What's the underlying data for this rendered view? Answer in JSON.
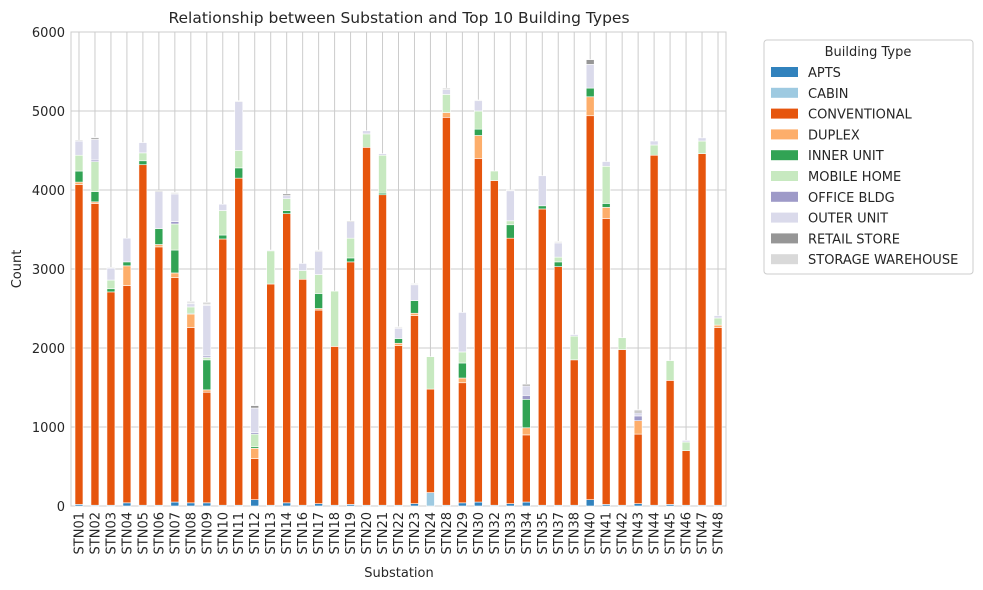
{
  "chart_data": {
    "type": "bar",
    "stacked": true,
    "title": "Relationship between Substation and Top 10 Building Types",
    "xlabel": "Substation",
    "ylabel": "Count",
    "ylim": [
      0,
      6000
    ],
    "yticks": [
      "0",
      "1000",
      "2000",
      "3000",
      "4000",
      "5000",
      "6000"
    ],
    "grid": true,
    "legend_title": "Building Type",
    "legend_position": "outside-right",
    "categories": [
      "STN01",
      "STN02",
      "STN03",
      "STN04",
      "STN05",
      "STN06",
      "STN07",
      "STN08",
      "STN09",
      "STN10",
      "STN11",
      "STN12",
      "STN13",
      "STN14",
      "STN16",
      "STN17",
      "STN18",
      "STN19",
      "STN20",
      "STN21",
      "STN22",
      "STN23",
      "STN24",
      "STN28",
      "STN29",
      "STN30",
      "STN32",
      "STN33",
      "STN34",
      "STN35",
      "STN37",
      "STN38",
      "STN40",
      "STN41",
      "STN42",
      "STN43",
      "STN44",
      "STN45",
      "STN46",
      "STN47",
      "STN48"
    ],
    "series": [
      {
        "name": "APTS",
        "color": "#3182bd",
        "values": [
          20,
          10,
          10,
          40,
          10,
          10,
          50,
          40,
          40,
          10,
          10,
          80,
          10,
          40,
          10,
          30,
          10,
          20,
          10,
          10,
          10,
          30,
          0,
          10,
          40,
          50,
          10,
          30,
          50,
          10,
          10,
          10,
          80,
          20,
          10,
          30,
          10,
          20,
          10,
          10,
          10
        ]
      },
      {
        "name": "CABIN",
        "color": "#9ecae1",
        "values": [
          0,
          0,
          0,
          0,
          0,
          0,
          0,
          0,
          0,
          0,
          0,
          0,
          0,
          0,
          0,
          0,
          0,
          0,
          0,
          0,
          0,
          0,
          170,
          0,
          0,
          0,
          0,
          0,
          0,
          0,
          0,
          0,
          0,
          0,
          0,
          0,
          0,
          0,
          0,
          0,
          0
        ]
      },
      {
        "name": "CONVENTIONAL",
        "color": "#e6550d",
        "values": [
          4050,
          3820,
          2700,
          2750,
          4310,
          3270,
          2840,
          2220,
          1400,
          3370,
          4140,
          520,
          2800,
          3660,
          2860,
          2450,
          2010,
          3070,
          4530,
          3930,
          2020,
          2380,
          1310,
          4910,
          1520,
          4350,
          4110,
          3360,
          850,
          3750,
          3020,
          1840,
          4860,
          3620,
          1970,
          880,
          4430,
          1570,
          690,
          4450,
          2250
        ]
      },
      {
        "name": "DUPLEX",
        "color": "#fdae6b",
        "values": [
          30,
          20,
          0,
          250,
          0,
          30,
          60,
          170,
          30,
          0,
          0,
          130,
          0,
          0,
          0,
          20,
          0,
          0,
          0,
          0,
          30,
          30,
          0,
          60,
          60,
          290,
          0,
          0,
          90,
          0,
          0,
          0,
          240,
          140,
          0,
          170,
          0,
          0,
          0,
          0,
          30
        ]
      },
      {
        "name": "INNER UNIT",
        "color": "#31a354",
        "values": [
          140,
          130,
          40,
          50,
          50,
          200,
          290,
          10,
          380,
          50,
          130,
          20,
          0,
          40,
          0,
          190,
          0,
          50,
          0,
          20,
          60,
          160,
          0,
          0,
          190,
          80,
          0,
          170,
          360,
          40,
          60,
          0,
          110,
          50,
          0,
          0,
          0,
          0,
          0,
          0,
          0
        ]
      },
      {
        "name": "MOBILE HOME",
        "color": "#c7e9c0",
        "values": [
          200,
          380,
          110,
          0,
          100,
          0,
          330,
          80,
          30,
          310,
          220,
          160,
          420,
          150,
          110,
          240,
          700,
          250,
          170,
          480,
          0,
          0,
          410,
          230,
          140,
          230,
          120,
          50,
          0,
          0,
          60,
          300,
          0,
          470,
          150,
          0,
          130,
          250,
          110,
          160,
          90
        ]
      },
      {
        "name": "OFFICE BLDG",
        "color": "#9e9ac8",
        "values": [
          0,
          20,
          0,
          0,
          0,
          0,
          30,
          0,
          20,
          0,
          0,
          20,
          0,
          0,
          0,
          0,
          0,
          0,
          0,
          0,
          0,
          0,
          0,
          0,
          0,
          0,
          0,
          0,
          50,
          0,
          0,
          0,
          0,
          0,
          0,
          60,
          0,
          0,
          0,
          0,
          0
        ]
      },
      {
        "name": "OUTER UNIT",
        "color": "#dadaeb",
        "values": [
          180,
          260,
          150,
          300,
          130,
          470,
          350,
          40,
          640,
          80,
          620,
          310,
          10,
          40,
          90,
          290,
          0,
          210,
          40,
          20,
          130,
          200,
          0,
          60,
          500,
          130,
          0,
          380,
          120,
          380,
          180,
          20,
          300,
          60,
          0,
          40,
          50,
          0,
          20,
          40,
          30
        ]
      },
      {
        "name": "RETAIL STORE",
        "color": "#969696",
        "values": [
          10,
          20,
          0,
          0,
          0,
          10,
          10,
          10,
          10,
          0,
          0,
          30,
          0,
          20,
          0,
          10,
          0,
          10,
          0,
          0,
          10,
          10,
          0,
          0,
          0,
          0,
          0,
          0,
          20,
          0,
          10,
          0,
          60,
          0,
          0,
          20,
          0,
          0,
          0,
          0,
          0
        ]
      },
      {
        "name": "STORAGE WAREHOUSE",
        "color": "#d9d9d9",
        "values": [
          0,
          10,
          10,
          0,
          0,
          0,
          10,
          20,
          30,
          0,
          10,
          10,
          0,
          0,
          0,
          10,
          0,
          0,
          0,
          0,
          10,
          10,
          0,
          20,
          0,
          10,
          0,
          10,
          0,
          0,
          10,
          0,
          0,
          0,
          0,
          20,
          0,
          0,
          0,
          0,
          0
        ]
      }
    ]
  }
}
